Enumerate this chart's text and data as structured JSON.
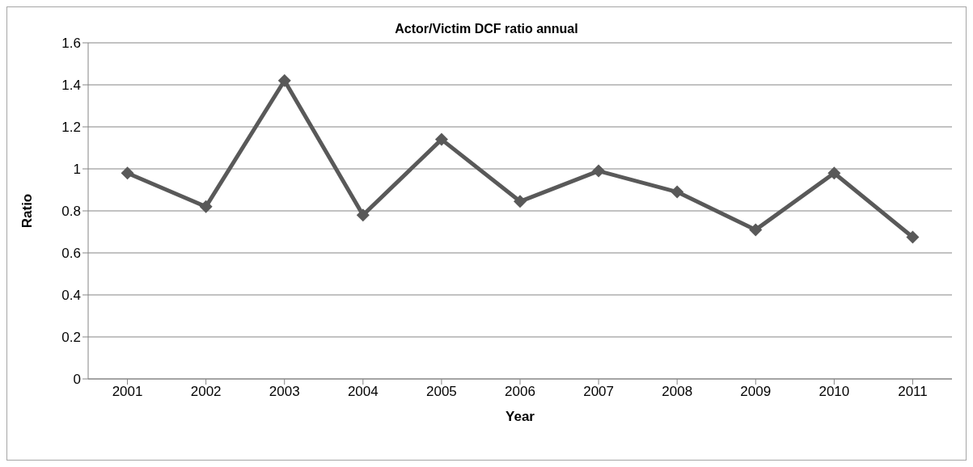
{
  "chart_data": {
    "type": "line",
    "title": "Actor/Victim DCF ratio annual",
    "xlabel": "Year",
    "ylabel": "Ratio",
    "categories": [
      "2001",
      "2002",
      "2003",
      "2004",
      "2005",
      "2006",
      "2007",
      "2008",
      "2009",
      "2010",
      "2011"
    ],
    "series": [
      {
        "color": "#595959",
        "values": [
          0.98,
          0.82,
          1.42,
          0.78,
          1.14,
          0.845,
          0.99,
          0.89,
          0.71,
          0.98,
          0.675
        ]
      }
    ],
    "ylim": [
      0,
      1.6
    ],
    "yticks": [
      0,
      0.2,
      0.4,
      0.6,
      0.8,
      1,
      1.2,
      1.4,
      1.6
    ],
    "grid": "y",
    "legend": false,
    "marker": "diamond",
    "line_style": "solid"
  }
}
